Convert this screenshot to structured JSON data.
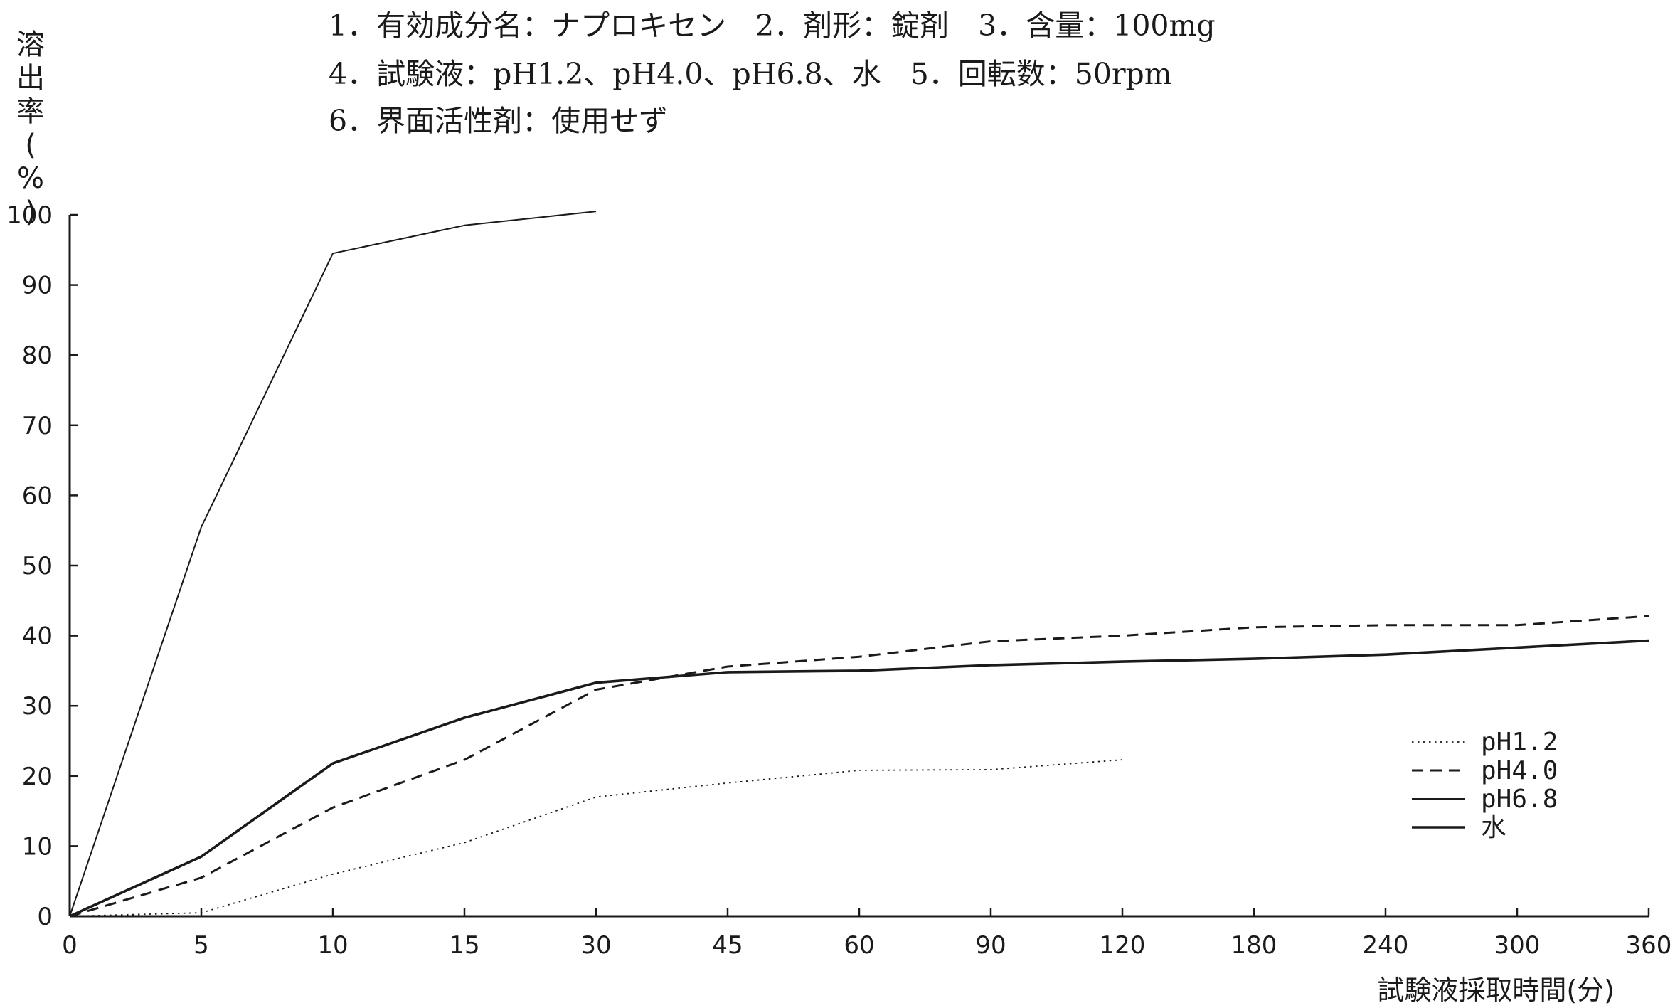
{
  "header": {
    "line1": "1．有効成分名：ナプロキセン　2．剤形：錠剤　3．含量：100mg",
    "line2": "4．試験液：pH1.2、pH4.0、pH6.8、水　5．回転数：50rpm",
    "line3": "6．界面活性剤：使用せず"
  },
  "chart_data": {
    "type": "line",
    "xlabel": "試験液採取時間(分)",
    "ylabel": "溶出率(%)",
    "categories": [
      "0",
      "5",
      "10",
      "15",
      "30",
      "45",
      "60",
      "90",
      "120",
      "180",
      "240",
      "300",
      "360"
    ],
    "ylim": [
      0,
      100
    ],
    "yticks": [
      "0",
      "10",
      "20",
      "30",
      "40",
      "50",
      "60",
      "70",
      "80",
      "90",
      "100"
    ],
    "grid": false,
    "legend_position": "bottom-right",
    "series": [
      {
        "name": "pH1.2",
        "style": "dotted",
        "values": [
          0,
          0.5,
          6,
          10.5,
          17,
          19,
          20.8,
          20.9,
          22.3,
          null,
          null,
          null,
          null
        ]
      },
      {
        "name": "pH4.0",
        "style": "dashed",
        "values": [
          0,
          5.5,
          15.5,
          22.3,
          32.3,
          35.6,
          37,
          39.2,
          40,
          41.2,
          41.5,
          41.5,
          42.8
        ]
      },
      {
        "name": "pH6.8",
        "style": "thin-solid",
        "values": [
          0,
          55.5,
          94.5,
          98.5,
          100.5,
          null,
          null,
          null,
          null,
          null,
          null,
          null,
          null
        ]
      },
      {
        "name": "水",
        "style": "solid",
        "values": [
          0,
          8.5,
          21.8,
          28.3,
          33.3,
          34.8,
          35,
          35.8,
          36.3,
          36.7,
          37.3,
          38.3,
          39.3
        ]
      }
    ],
    "line_color": "#1a1a1a"
  }
}
